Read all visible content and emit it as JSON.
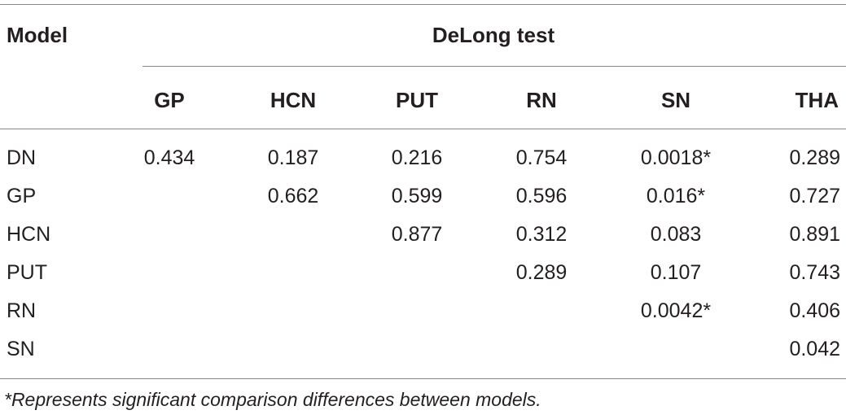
{
  "table": {
    "header": {
      "model": "Model",
      "group": "DeLong test",
      "columns": [
        "GP",
        "HCN",
        "PUT",
        "RN",
        "SN",
        "THA"
      ]
    },
    "rows": [
      {
        "label": "DN",
        "values": [
          "0.434",
          "0.187",
          "0.216",
          "0.754",
          "0.0018*",
          "0.289"
        ]
      },
      {
        "label": "GP",
        "values": [
          "",
          "0.662",
          "0.599",
          "0.596",
          "0.016*",
          "0.727"
        ]
      },
      {
        "label": "HCN",
        "values": [
          "",
          "",
          "0.877",
          "0.312",
          "0.083",
          "0.891"
        ]
      },
      {
        "label": "PUT",
        "values": [
          "",
          "",
          "",
          "0.289",
          "0.107",
          "0.743"
        ]
      },
      {
        "label": "RN",
        "values": [
          "",
          "",
          "",
          "",
          "0.0042*",
          "0.406"
        ]
      },
      {
        "label": "SN",
        "values": [
          "",
          "",
          "",
          "",
          "",
          "0.042"
        ]
      }
    ],
    "footnote": "*Represents significant comparison differences between models."
  }
}
